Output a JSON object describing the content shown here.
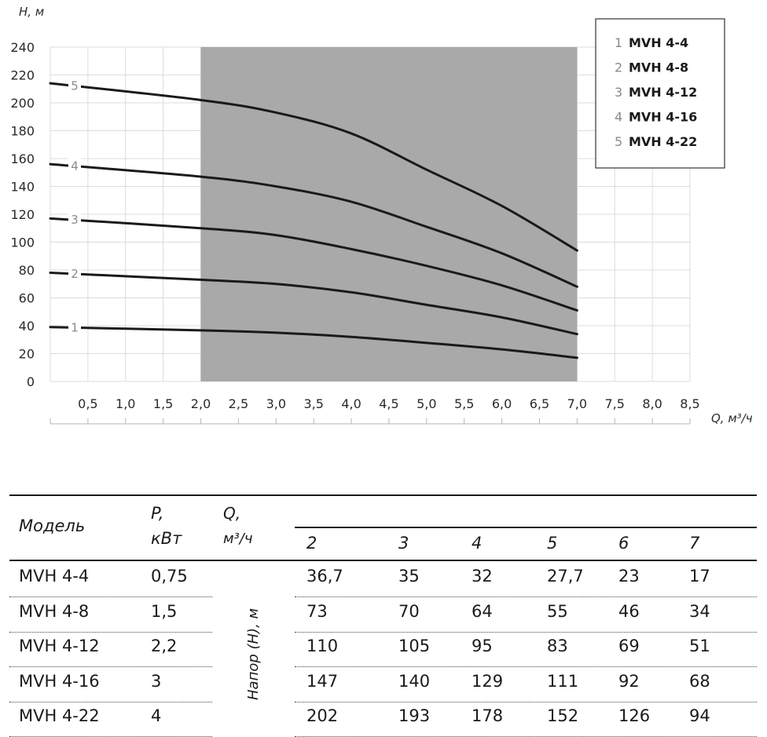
{
  "chart_data": {
    "type": "line",
    "xlabel": "Q, м³/ч",
    "ylabel": "H, м",
    "xlim": [
      0,
      8.5
    ],
    "ylim": [
      0,
      240
    ],
    "x_ticks": [
      "0,5",
      "1,0",
      "1,5",
      "2,0",
      "2,5",
      "3,0",
      "3,5",
      "4,0",
      "4,5",
      "5,0",
      "5,5",
      "6,0",
      "6,5",
      "7,0",
      "7,5",
      "8,0",
      "8,5"
    ],
    "x_tick_values": [
      0.5,
      1,
      1.5,
      2,
      2.5,
      3,
      3.5,
      4,
      4.5,
      5,
      5.5,
      6,
      6.5,
      7,
      7.5,
      8,
      8.5
    ],
    "y_ticks": [
      "0",
      "20",
      "40",
      "60",
      "80",
      "100",
      "120",
      "140",
      "160",
      "180",
      "200",
      "220",
      "240"
    ],
    "y_tick_values": [
      0,
      20,
      40,
      60,
      80,
      100,
      120,
      140,
      160,
      180,
      200,
      220,
      240
    ],
    "shaded_range": [
      2,
      7
    ],
    "grid": true,
    "legend_position": "top-right",
    "series": [
      {
        "name": "MVH 4-4",
        "label": "1",
        "x": [
          0,
          2,
          3,
          4,
          5,
          6,
          7
        ],
        "values": [
          39,
          36.7,
          35,
          32,
          27.7,
          23,
          17
        ]
      },
      {
        "name": "MVH 4-8",
        "label": "2",
        "x": [
          0,
          2,
          3,
          4,
          5,
          6,
          7
        ],
        "values": [
          78,
          73,
          70,
          64,
          55,
          46,
          34
        ]
      },
      {
        "name": "MVH 4-12",
        "label": "3",
        "x": [
          0,
          2,
          3,
          4,
          5,
          6,
          7
        ],
        "values": [
          117,
          110,
          105,
          95,
          83,
          69,
          51
        ]
      },
      {
        "name": "MVH 4-16",
        "label": "4",
        "x": [
          0,
          2,
          3,
          4,
          5,
          6,
          7
        ],
        "values": [
          156,
          147,
          140,
          129,
          111,
          92,
          68
        ]
      },
      {
        "name": "MVH 4-22",
        "label": "5",
        "x": [
          0,
          2,
          3,
          4,
          5,
          6,
          7
        ],
        "values": [
          214,
          202,
          193,
          178,
          152,
          126,
          94
        ]
      }
    ]
  },
  "table": {
    "headers": {
      "model": "Модель",
      "power_1": "P,",
      "power_2": "кВт",
      "flow_1": "Q,",
      "flow_2": "м³/ч",
      "head": "Напор (H), м"
    },
    "flow_values": [
      "2",
      "3",
      "4",
      "5",
      "6",
      "7"
    ],
    "rows": [
      {
        "model": "MVH 4-4",
        "power": "0,75",
        "values": [
          "36,7",
          "35",
          "32",
          "27,7",
          "23",
          "17"
        ]
      },
      {
        "model": "MVH 4-8",
        "power": "1,5",
        "values": [
          "73",
          "70",
          "64",
          "55",
          "46",
          "34"
        ]
      },
      {
        "model": "MVH 4-12",
        "power": "2,2",
        "values": [
          "110",
          "105",
          "95",
          "83",
          "69",
          "51"
        ]
      },
      {
        "model": "MVH 4-16",
        "power": "3",
        "values": [
          "147",
          "140",
          "129",
          "111",
          "92",
          "68"
        ]
      },
      {
        "model": "MVH 4-22",
        "power": "4",
        "values": [
          "202",
          "193",
          "178",
          "152",
          "126",
          "94"
        ]
      }
    ]
  }
}
